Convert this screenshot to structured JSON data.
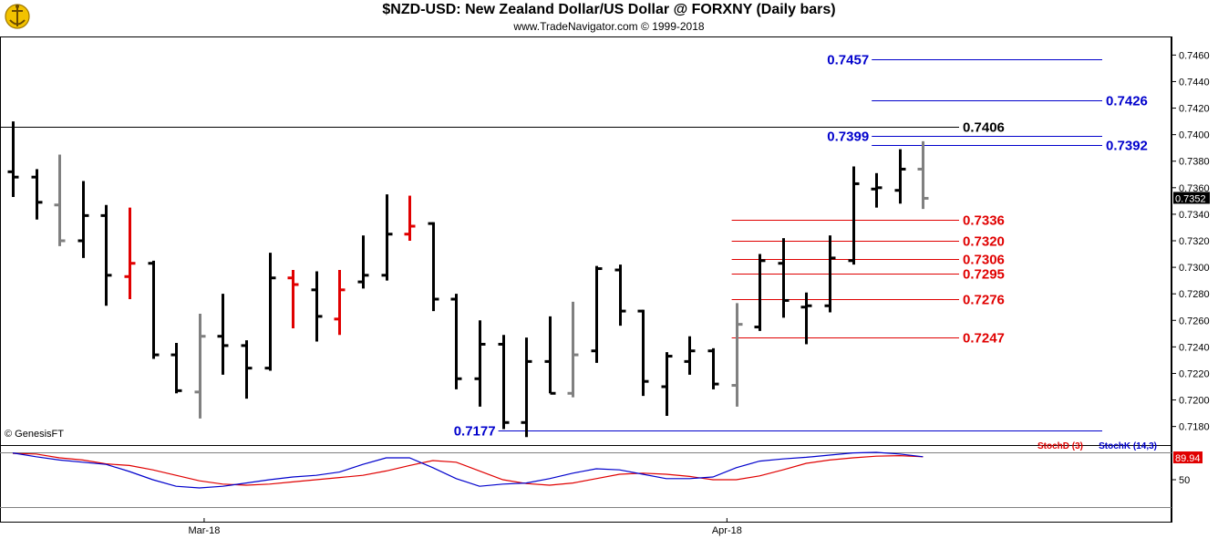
{
  "header": {
    "title": "$NZD-USD:  New Zealand Dollar/US Dollar @ FORXNY  (Daily bars)",
    "subtitle": "www.TradeNavigator.com © 1999-2018"
  },
  "watermark": "© GenesisFT",
  "chart_data": [
    {
      "type": "ohlc",
      "title": "$NZD-USD:  New Zealand Dollar/US Dollar @ FORXNY  (Daily bars)",
      "ylim": [
        0.7166,
        0.7474
      ],
      "y_ticks": [
        "0.7180",
        "0.7200",
        "0.7220",
        "0.7240",
        "0.7260",
        "0.7280",
        "0.7300",
        "0.7320",
        "0.7340",
        "0.7360",
        "0.7380",
        "0.7400",
        "0.7420",
        "0.7440",
        "0.7460"
      ],
      "x_labels": [
        "Mar-18",
        "Apr-18"
      ],
      "last_price": "0.7352",
      "colors": {
        "up": "#000000",
        "down": "#000000",
        "neutral": "#808080",
        "highlight": "#e00000",
        "blue_level": "#0000cc",
        "red_level": "#e00000"
      },
      "bars": [
        {
          "o": 0.7372,
          "h": 0.741,
          "l": 0.7353,
          "c": 0.7368,
          "color": "black"
        },
        {
          "o": 0.7368,
          "h": 0.7374,
          "l": 0.7336,
          "c": 0.7349,
          "color": "black"
        },
        {
          "o": 0.7347,
          "h": 0.7385,
          "l": 0.7316,
          "c": 0.732,
          "color": "gray"
        },
        {
          "o": 0.732,
          "h": 0.7365,
          "l": 0.7307,
          "c": 0.7339,
          "color": "black"
        },
        {
          "o": 0.7339,
          "h": 0.7347,
          "l": 0.7271,
          "c": 0.7294,
          "color": "black"
        },
        {
          "o": 0.7293,
          "h": 0.7345,
          "l": 0.7276,
          "c": 0.7303,
          "color": "red"
        },
        {
          "o": 0.7303,
          "h": 0.7305,
          "l": 0.7231,
          "c": 0.7234,
          "color": "black"
        },
        {
          "o": 0.7234,
          "h": 0.7243,
          "l": 0.7205,
          "c": 0.7207,
          "color": "black"
        },
        {
          "o": 0.7206,
          "h": 0.7265,
          "l": 0.7186,
          "c": 0.7248,
          "color": "gray"
        },
        {
          "o": 0.7248,
          "h": 0.728,
          "l": 0.7219,
          "c": 0.7241,
          "color": "black"
        },
        {
          "o": 0.7241,
          "h": 0.7245,
          "l": 0.7201,
          "c": 0.7224,
          "color": "black"
        },
        {
          "o": 0.7224,
          "h": 0.7311,
          "l": 0.7222,
          "c": 0.7292,
          "color": "black"
        },
        {
          "o": 0.7292,
          "h": 0.7298,
          "l": 0.7254,
          "c": 0.7287,
          "color": "red"
        },
        {
          "o": 0.7283,
          "h": 0.7297,
          "l": 0.7244,
          "c": 0.7263,
          "color": "black"
        },
        {
          "o": 0.7261,
          "h": 0.7298,
          "l": 0.7249,
          "c": 0.7283,
          "color": "red"
        },
        {
          "o": 0.7289,
          "h": 0.7324,
          "l": 0.7284,
          "c": 0.7294,
          "color": "black"
        },
        {
          "o": 0.7294,
          "h": 0.7355,
          "l": 0.729,
          "c": 0.7325,
          "color": "black"
        },
        {
          "o": 0.7325,
          "h": 0.7354,
          "l": 0.732,
          "c": 0.7331,
          "color": "red"
        },
        {
          "o": 0.7333,
          "h": 0.7334,
          "l": 0.7267,
          "c": 0.7276,
          "color": "black"
        },
        {
          "o": 0.7276,
          "h": 0.728,
          "l": 0.7208,
          "c": 0.7216,
          "color": "black"
        },
        {
          "o": 0.7216,
          "h": 0.726,
          "l": 0.7195,
          "c": 0.7242,
          "color": "black"
        },
        {
          "o": 0.7242,
          "h": 0.7249,
          "l": 0.7178,
          "c": 0.7183,
          "color": "black"
        },
        {
          "o": 0.7183,
          "h": 0.7247,
          "l": 0.7172,
          "c": 0.7229,
          "color": "black"
        },
        {
          "o": 0.7229,
          "h": 0.7263,
          "l": 0.7205,
          "c": 0.7205,
          "color": "black"
        },
        {
          "o": 0.7205,
          "h": 0.7274,
          "l": 0.7202,
          "c": 0.7234,
          "color": "gray"
        },
        {
          "o": 0.7237,
          "h": 0.7301,
          "l": 0.7228,
          "c": 0.7299,
          "color": "black"
        },
        {
          "o": 0.7298,
          "h": 0.7302,
          "l": 0.7256,
          "c": 0.7267,
          "color": "black"
        },
        {
          "o": 0.7267,
          "h": 0.7268,
          "l": 0.7203,
          "c": 0.7214,
          "color": "black"
        },
        {
          "o": 0.721,
          "h": 0.7236,
          "l": 0.7188,
          "c": 0.7233,
          "color": "black"
        },
        {
          "o": 0.7229,
          "h": 0.7248,
          "l": 0.7219,
          "c": 0.7237,
          "color": "black"
        },
        {
          "o": 0.7237,
          "h": 0.7239,
          "l": 0.7208,
          "c": 0.7212,
          "color": "black"
        },
        {
          "o": 0.7211,
          "h": 0.7273,
          "l": 0.7195,
          "c": 0.7257,
          "color": "gray"
        },
        {
          "o": 0.7255,
          "h": 0.731,
          "l": 0.7252,
          "c": 0.7305,
          "color": "black"
        },
        {
          "o": 0.7303,
          "h": 0.7322,
          "l": 0.7262,
          "c": 0.7275,
          "color": "black"
        },
        {
          "o": 0.727,
          "h": 0.7281,
          "l": 0.7242,
          "c": 0.7271,
          "color": "black"
        },
        {
          "o": 0.7271,
          "h": 0.7324,
          "l": 0.7266,
          "c": 0.7307,
          "color": "black"
        },
        {
          "o": 0.7305,
          "h": 0.7376,
          "l": 0.7302,
          "c": 0.7363,
          "color": "black"
        },
        {
          "o": 0.7359,
          "h": 0.7371,
          "l": 0.7345,
          "c": 0.736,
          "color": "black"
        },
        {
          "o": 0.7358,
          "h": 0.7389,
          "l": 0.7348,
          "c": 0.7374,
          "color": "black"
        },
        {
          "o": 0.7374,
          "h": 0.7395,
          "l": 0.7344,
          "c": 0.7352,
          "color": "gray"
        }
      ],
      "levels": [
        {
          "value": 0.7457,
          "label": "0.7457",
          "color": "blue",
          "side": "left",
          "from_bar": 37,
          "to_bar": 47
        },
        {
          "value": 0.7426,
          "label": "0.7426",
          "color": "blue",
          "side": "right",
          "from_bar": 37,
          "to_bar": 47
        },
        {
          "value": 0.7406,
          "label": "0.7406",
          "color": "black",
          "side": "right",
          "from_bar": 0,
          "to_bar": 40
        },
        {
          "value": 0.7399,
          "label": "0.7399",
          "color": "blue",
          "side": "left",
          "from_bar": 37,
          "to_bar": 47
        },
        {
          "value": 0.7392,
          "label": "0.7392",
          "color": "blue",
          "side": "right",
          "from_bar": 37,
          "to_bar": 47
        },
        {
          "value": 0.7336,
          "label": "0.7336",
          "color": "red",
          "side": "right",
          "from_bar": 31,
          "to_bar": 40
        },
        {
          "value": 0.732,
          "label": "0.7320",
          "color": "red",
          "side": "right",
          "from_bar": 31,
          "to_bar": 40
        },
        {
          "value": 0.7306,
          "label": "0.7306",
          "color": "red",
          "side": "right",
          "from_bar": 31,
          "to_bar": 40
        },
        {
          "value": 0.7295,
          "label": "0.7295",
          "color": "red",
          "side": "right",
          "from_bar": 31,
          "to_bar": 40
        },
        {
          "value": 0.7276,
          "label": "0.7276",
          "color": "red",
          "side": "right",
          "from_bar": 31,
          "to_bar": 40
        },
        {
          "value": 0.7247,
          "label": "0.7247",
          "color": "red",
          "side": "right",
          "from_bar": 31,
          "to_bar": 40
        },
        {
          "value": 0.7177,
          "label": "0.7177",
          "color": "blue",
          "side": "left",
          "from_bar": 21,
          "to_bar": 47
        }
      ]
    },
    {
      "type": "line",
      "title": "Stochastic",
      "ylim": [
        0,
        100
      ],
      "y_ticks": [
        "50"
      ],
      "last_value": "89.94",
      "series": [
        {
          "name": "StochD (3)",
          "color": "#e00000",
          "values": [
            98,
            97,
            90,
            86,
            79,
            76,
            68,
            58,
            48,
            42,
            40,
            42,
            46,
            50,
            54,
            58,
            66,
            76,
            85,
            82,
            66,
            50,
            43,
            40,
            44,
            52,
            60,
            62,
            60,
            56,
            50,
            50,
            57,
            68,
            80,
            86,
            90,
            93,
            94,
            92
          ]
        },
        {
          "name": "StochK (14,3)",
          "color": "#0000cc",
          "values": [
            99,
            92,
            86,
            82,
            78,
            65,
            50,
            38,
            35,
            38,
            44,
            50,
            55,
            58,
            64,
            78,
            90,
            90,
            72,
            52,
            38,
            42,
            44,
            52,
            62,
            70,
            68,
            60,
            52,
            52,
            55,
            72,
            84,
            88,
            91,
            95,
            99,
            100,
            97,
            92
          ]
        }
      ]
    }
  ]
}
